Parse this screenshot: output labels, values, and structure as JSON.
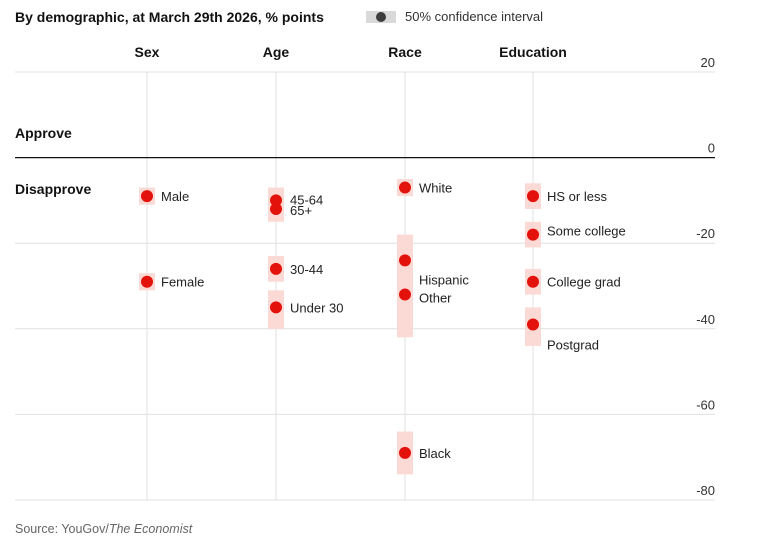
{
  "subtitle": "By demographic, at March 29th 2026, % points",
  "legend": {
    "label": "50% confidence interval"
  },
  "source": {
    "prefix": "Source: YouGov/",
    "publication": "The Economist"
  },
  "colors": {
    "dot": "#e3120b",
    "interval": "#fbdad6",
    "grid": "#e0e0e0",
    "zero": "#121212"
  },
  "chart_data": {
    "type": "scatter",
    "title": "By demographic, at March 29th 2026, % points",
    "ylabel": "% points",
    "ylim": [
      -80,
      20
    ],
    "yticks": [
      20,
      0,
      -20,
      -40,
      -60,
      -80
    ],
    "band_labels": {
      "approve": "Approve",
      "disapprove": "Disapprove"
    },
    "groups": [
      {
        "name": "Sex",
        "points": [
          {
            "label": "Male",
            "value": -9,
            "ci": [
              -11,
              -7
            ]
          },
          {
            "label": "Female",
            "value": -29,
            "ci": [
              -31,
              -27
            ]
          }
        ]
      },
      {
        "name": "Age",
        "points": [
          {
            "label": "45-64",
            "value": -10,
            "ci": [
              -13,
              -7
            ]
          },
          {
            "label": "65+",
            "value": -12,
            "ci": [
              -15,
              -9
            ]
          },
          {
            "label": "30-44",
            "value": -26,
            "ci": [
              -29,
              -23
            ]
          },
          {
            "label": "Under 30",
            "value": -35,
            "ci": [
              -40,
              -31
            ]
          }
        ]
      },
      {
        "name": "Race",
        "points": [
          {
            "label": "White",
            "value": -7,
            "ci": [
              -9,
              -5
            ]
          },
          {
            "label": "Hispanic",
            "value": -24,
            "ci": [
              -31,
              -18
            ]
          },
          {
            "label": "Other",
            "value": -32,
            "ci": [
              -42,
              -28
            ]
          },
          {
            "label": "Black",
            "value": -69,
            "ci": [
              -74,
              -64
            ]
          }
        ]
      },
      {
        "name": "Education",
        "points": [
          {
            "label": "HS or less",
            "value": -9,
            "ci": [
              -12,
              -6
            ]
          },
          {
            "label": "Some college",
            "value": -18,
            "ci": [
              -21,
              -15
            ]
          },
          {
            "label": "College grad",
            "value": -29,
            "ci": [
              -32,
              -26
            ]
          },
          {
            "label": "Postgrad",
            "value": -39,
            "ci": [
              -44,
              -35
            ]
          }
        ]
      }
    ]
  }
}
